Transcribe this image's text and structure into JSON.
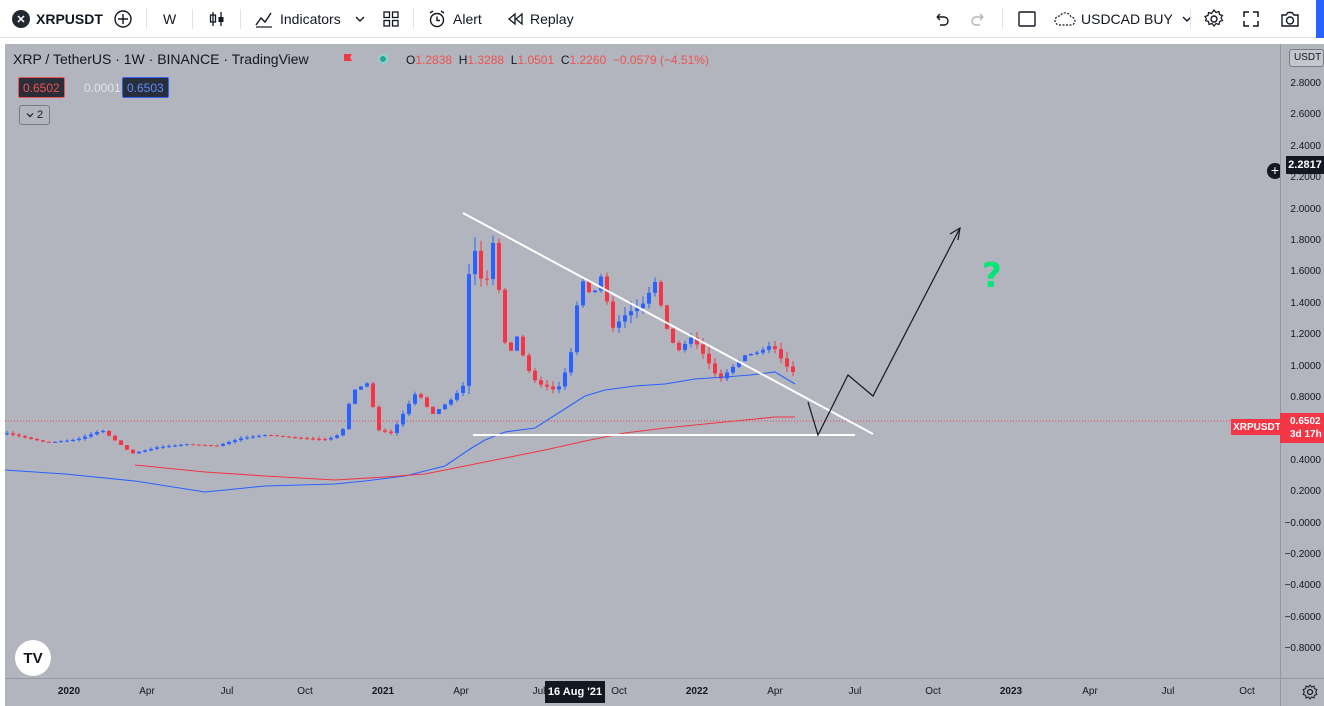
{
  "toolbar": {
    "symbol": "XRPUSDT",
    "interval": "W",
    "indicators_label": "Indicators",
    "alert_label": "Alert",
    "replay_label": "Replay",
    "layout_name": "USDCAD BUY"
  },
  "legend": {
    "title": "XRP / TetherUS · 1W · BINANCE · TradingView",
    "open_label": "O",
    "open": "1.2838",
    "high_label": "H",
    "high": "1.3288",
    "low_label": "L",
    "low": "1.0501",
    "close_label": "C",
    "close": "1.2260",
    "change": "−0.0579 (−4.51%)",
    "bid": "0.6502",
    "spread": "0.0001",
    "ask": "0.6503",
    "collapsed_count": "2"
  },
  "price_axis": {
    "currency": "USDT",
    "ticks": [
      "2.8000",
      "2.6000",
      "2.4000",
      "2.2000",
      "2.0000",
      "1.8000",
      "1.6000",
      "1.4000",
      "1.2000",
      "1.0000",
      "0.8000",
      "0.6000",
      "0.4000",
      "0.2000",
      "−0.0000",
      "−0.2000",
      "−0.4000",
      "−0.6000",
      "−0.8000"
    ],
    "crosshair_value": "2.2817",
    "last_symbol": "XRPUSDT",
    "last_price": "0.6502",
    "countdown": "3d 17h"
  },
  "time_axis": {
    "ticks": [
      "2020",
      "Apr",
      "Jul",
      "Oct",
      "2021",
      "Apr",
      "Jul",
      "Oct",
      "2022",
      "Apr",
      "Jul",
      "Oct",
      "2023",
      "Apr",
      "Jul",
      "Oct"
    ],
    "crosshair_date": "16 Aug '21"
  },
  "annotation": {
    "question_mark": "?"
  },
  "colors": {
    "background": "#b2b5be",
    "up_candle": "#2962ff",
    "down_candle": "#f23645",
    "ma_blue": "#2962ff",
    "ma_red": "#f23645",
    "trendline": "#ffffff",
    "projection": "#131722",
    "question": "#00e676"
  }
}
